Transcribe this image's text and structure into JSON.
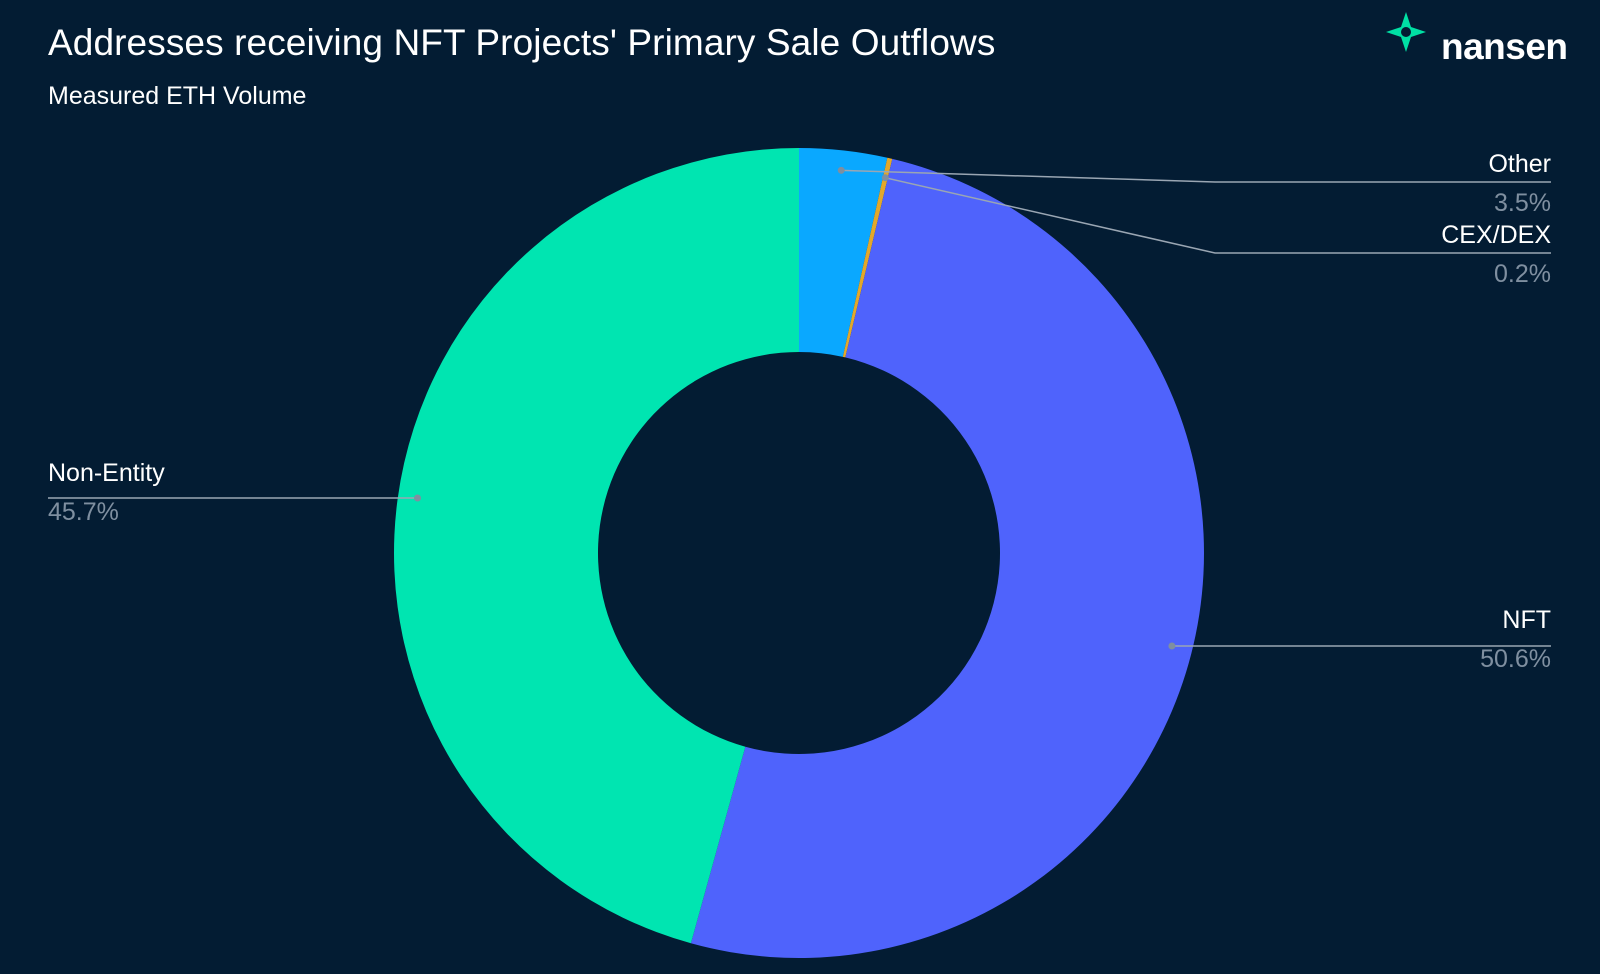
{
  "header": {
    "title": "Addresses receiving NFT Projects' Primary Sale Outflows",
    "subtitle": "Measured ETH Volume"
  },
  "brand": {
    "name": "nansen",
    "icon": "nansen-star-icon",
    "color": "#00e0a4"
  },
  "chart_data": {
    "type": "pie",
    "variant": "donut",
    "title": "Addresses receiving NFT Projects' Primary Sale Outflows",
    "subtitle": "Measured ETH Volume",
    "start_angle_deg": 0,
    "direction": "clockwise",
    "slices": [
      {
        "name": "Other",
        "value": 3.5,
        "display": "3.5%",
        "color": "#0aa8ff",
        "label_side": "right"
      },
      {
        "name": "CEX/DEX",
        "value": 0.2,
        "display": "0.2%",
        "color": "#e3a82a",
        "label_side": "right"
      },
      {
        "name": "NFT",
        "value": 50.6,
        "display": "50.6%",
        "color": "#4f63fc",
        "label_side": "right"
      },
      {
        "name": "Non-Entity",
        "value": 45.7,
        "display": "45.7%",
        "color": "#00e5b1",
        "label_side": "left"
      }
    ],
    "legend": "none",
    "labels": "outside with leader lines"
  }
}
